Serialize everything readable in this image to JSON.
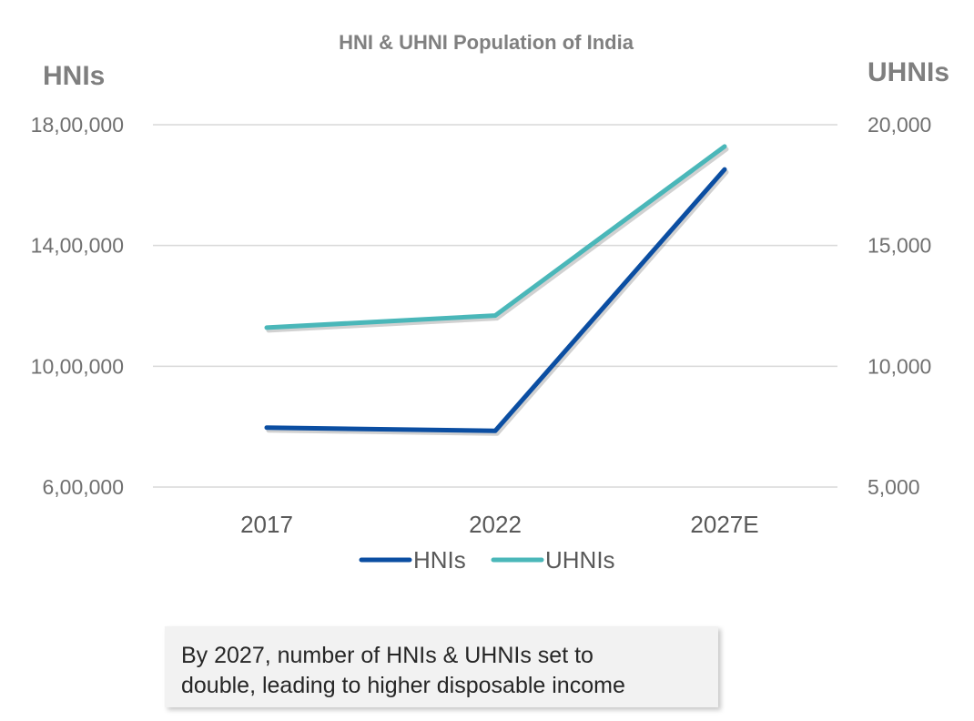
{
  "chart_data": {
    "type": "line",
    "title": "HNI & UHNI Population of India",
    "categories": [
      "2017",
      "2022",
      "2027E"
    ],
    "y_left": {
      "label": "HNIs",
      "ylim": [
        600000,
        1800000
      ],
      "ticks": [
        600000,
        1000000,
        1400000,
        1800000
      ],
      "tick_labels": [
        "6,00,000",
        "10,00,000",
        "14,00,000",
        "18,00,000"
      ]
    },
    "y_right": {
      "label": "UHNIs",
      "ylim": [
        5000,
        20000
      ],
      "ticks": [
        5000,
        10000,
        15000,
        20000
      ],
      "tick_labels": [
        "5,000",
        "10,000",
        "15,000",
        "20,000"
      ]
    },
    "series": [
      {
        "name": "HNIs",
        "axis": "left",
        "values": [
          797000,
          786000,
          1652000
        ],
        "color": "#0b4ea2"
      },
      {
        "name": "UHNIs",
        "axis": "right",
        "values": [
          11600,
          12100,
          19100
        ],
        "color": "#4ab7b9"
      }
    ],
    "grid": true,
    "legend_position": "bottom"
  },
  "note": {
    "text_line1": "By 2027, number of HNIs & UHNIs set to",
    "text_line2": "double, leading to higher disposable income"
  }
}
